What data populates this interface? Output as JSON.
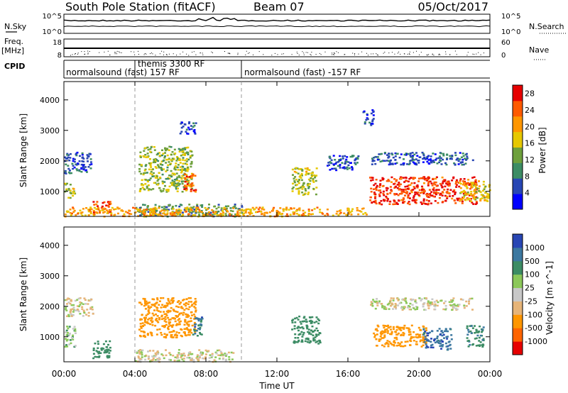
{
  "header": {
    "station": "South Pole Station (fitACF)",
    "beam": "Beam 07",
    "date": "05/Oct/2017"
  },
  "left_labels": {
    "nsky": "N.Sky",
    "freq": "Freq.",
    "mhz": "[MHz]",
    "cpid": "CPID"
  },
  "right_labels": {
    "nsearch": "N.Search",
    "nave": "Nave"
  },
  "noise_panel": {
    "left_ticks": [
      "10^5",
      "10^0"
    ],
    "right_ticks": [
      "10^5",
      "10^0"
    ]
  },
  "freq_panel": {
    "left_ticks": [
      "18",
      "8"
    ],
    "right_ticks": [
      "60",
      "0"
    ]
  },
  "cpid_segments": [
    {
      "label": "normalsound (fast) 157 RF",
      "start_hour": 0
    },
    {
      "label": "themis 3300 RF",
      "start_hour": 4
    },
    {
      "label": "normalsound (fast) -157 RF",
      "start_hour": 10
    }
  ],
  "x_axis": {
    "title": "Time UT",
    "ticks": [
      "00:00",
      "04:00",
      "08:00",
      "12:00",
      "16:00",
      "20:00",
      "00:00"
    ]
  },
  "colors": {
    "power_scale": [
      "#0000ff",
      "#2846b4",
      "#3c8c64",
      "#6ea03c",
      "#e6c800",
      "#ff9600",
      "#ff5a00",
      "#e60000"
    ],
    "velocity_scale": [
      "#e60000",
      "#ff6400",
      "#ff9600",
      "#e6b478",
      "#c8c8c8",
      "#8cc85a",
      "#3c8c64",
      "#3c78a0",
      "#2846b4"
    ]
  },
  "chart_data": [
    {
      "type": "heatmap",
      "title": "Power",
      "ylabel": "Slant Range [km]",
      "xlabel": "",
      "xlim_hours": [
        0,
        24
      ],
      "ylim_km": [
        180,
        4600
      ],
      "y_ticks": [
        1000,
        2000,
        3000,
        4000
      ],
      "colorbar": {
        "label": "Power [dB]",
        "ticks": [
          4,
          8,
          12,
          16,
          20,
          24,
          28
        ],
        "range": [
          0,
          30
        ]
      },
      "regions": [
        {
          "t0": 0.0,
          "t1": 1.5,
          "r0": 1600,
          "r1": 2300,
          "value": 6
        },
        {
          "t0": 0.0,
          "t1": 0.6,
          "r0": 800,
          "r1": 1300,
          "value": 16
        },
        {
          "t0": 1.6,
          "t1": 2.6,
          "r0": 300,
          "r1": 700,
          "value": 26
        },
        {
          "t0": 4.2,
          "t1": 7.2,
          "r0": 1000,
          "r1": 2500,
          "value": 14
        },
        {
          "t0": 6.7,
          "t1": 7.4,
          "r0": 1000,
          "r1": 1600,
          "value": 24
        },
        {
          "t0": 4.0,
          "t1": 10.0,
          "r0": 200,
          "r1": 600,
          "value": 10
        },
        {
          "t0": 6.5,
          "t1": 7.4,
          "r0": 2900,
          "r1": 3300,
          "value": 5
        },
        {
          "t0": 12.8,
          "t1": 14.2,
          "r0": 900,
          "r1": 1800,
          "value": 15
        },
        {
          "t0": 14.8,
          "t1": 16.6,
          "r0": 1700,
          "r1": 2200,
          "value": 6
        },
        {
          "t0": 16.8,
          "t1": 17.4,
          "r0": 3200,
          "r1": 3700,
          "value": 5
        },
        {
          "t0": 17.2,
          "t1": 23.0,
          "r0": 1900,
          "r1": 2300,
          "value": 6
        },
        {
          "t0": 17.2,
          "t1": 23.2,
          "r0": 600,
          "r1": 1500,
          "value": 26
        },
        {
          "t0": 22.2,
          "t1": 24.0,
          "r0": 700,
          "r1": 1400,
          "value": 17
        },
        {
          "t0": 0.0,
          "t1": 17.0,
          "r0": 200,
          "r1": 500,
          "value": 20
        }
      ]
    },
    {
      "type": "heatmap",
      "title": "Velocity",
      "ylabel": "Slant Range [km]",
      "xlabel": "Time UT",
      "xlim_hours": [
        0,
        24
      ],
      "ylim_km": [
        180,
        4600
      ],
      "y_ticks": [
        1000,
        2000,
        3000,
        4000
      ],
      "colorbar": {
        "label": "Velocity [m s^-1]",
        "ticks": [
          -1000,
          -500,
          -100,
          -25,
          25,
          100,
          500,
          1000
        ]
      },
      "regions": [
        {
          "t0": 0.0,
          "t1": 1.6,
          "r0": 1700,
          "r1": 2300,
          "value": 0
        },
        {
          "t0": 0.0,
          "t1": 0.6,
          "r0": 700,
          "r1": 1400,
          "value": 80
        },
        {
          "t0": 1.6,
          "t1": 2.6,
          "r0": 300,
          "r1": 900,
          "value": 300
        },
        {
          "t0": 4.2,
          "t1": 7.4,
          "r0": 1000,
          "r1": 2300,
          "value": -300
        },
        {
          "t0": 7.2,
          "t1": 7.8,
          "r0": 1000,
          "r1": 1700,
          "value": 700
        },
        {
          "t0": 4.0,
          "t1": 9.5,
          "r0": 200,
          "r1": 600,
          "value": 0
        },
        {
          "t0": 12.8,
          "t1": 14.4,
          "r0": 800,
          "r1": 1700,
          "value": 300
        },
        {
          "t0": 17.4,
          "t1": 20.4,
          "r0": 700,
          "r1": 1400,
          "value": -200
        },
        {
          "t0": 20.2,
          "t1": 21.8,
          "r0": 600,
          "r1": 1300,
          "value": 800
        },
        {
          "t0": 22.6,
          "t1": 23.6,
          "r0": 700,
          "r1": 1400,
          "value": 400
        },
        {
          "t0": 17.2,
          "t1": 23.0,
          "r0": 1900,
          "r1": 2300,
          "value": 0
        }
      ]
    }
  ]
}
